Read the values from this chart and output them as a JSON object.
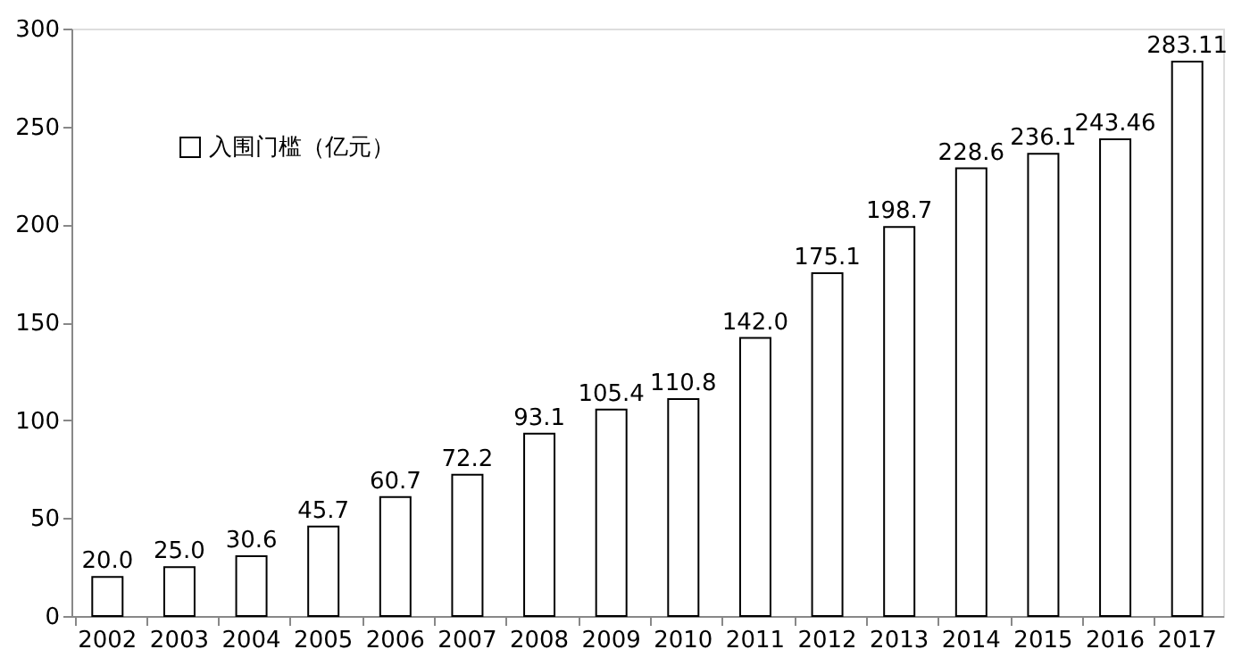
{
  "chart_data": {
    "type": "bar",
    "categories": [
      "2002",
      "2003",
      "2004",
      "2005",
      "2006",
      "2007",
      "2008",
      "2009",
      "2010",
      "2011",
      "2012",
      "2013",
      "2014",
      "2015",
      "2016",
      "2017"
    ],
    "series": [
      {
        "name": "入围门槛（亿元）",
        "color": "#ffffff",
        "values": [
          20.0,
          25.0,
          30.6,
          45.7,
          60.7,
          72.2,
          93.1,
          105.4,
          110.8,
          142.0,
          175.1,
          198.7,
          228.6,
          236.1,
          243.46,
          283.11
        ],
        "value_labels": [
          "20.0",
          "25.0",
          "30.6",
          "45.7",
          "60.7",
          "72.2",
          "93.1",
          "105.4",
          "110.8",
          "142.0",
          "175.1",
          "198.7",
          "228.6",
          "236.1",
          "243.46",
          "283.11"
        ]
      }
    ],
    "ylim": [
      0,
      300
    ],
    "yticks": [
      0,
      50,
      100,
      150,
      200,
      250,
      300
    ],
    "grid": false,
    "legend": "top left"
  }
}
